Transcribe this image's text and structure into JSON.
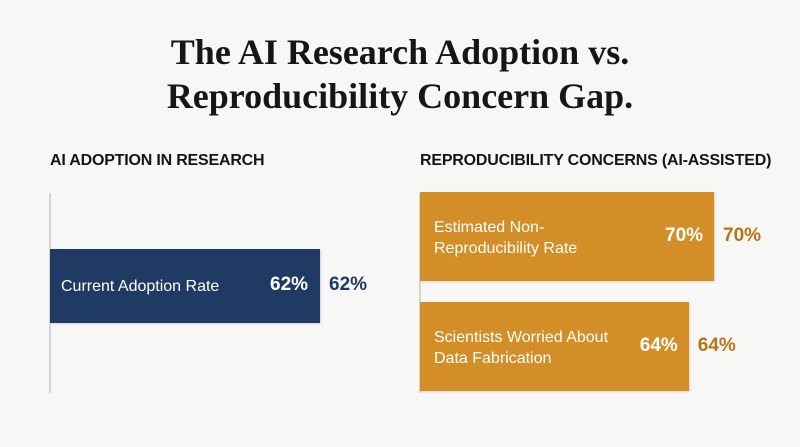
{
  "title_lines": [
    "The AI Research Adoption vs.",
    "Reproducibility Concern Gap."
  ],
  "colors": {
    "adoption": "#1f3a63",
    "concern": "#d38e27",
    "concern_text": "#b87518",
    "adoption_text": "#1f3a63"
  },
  "chart_data": [
    {
      "type": "bar",
      "orientation": "horizontal",
      "title": "AI ADOPTION IN RESEARCH",
      "categories": [
        "Current Adoption Rate"
      ],
      "values": [
        62
      ],
      "value_labels": [
        "62%"
      ],
      "xlim": [
        0,
        100
      ]
    },
    {
      "type": "bar",
      "orientation": "horizontal",
      "title": "REPRODUCIBILITY CONCERNS (AI-ASSISTED)",
      "categories": [
        "Estimated Non-Reproducibility Rate",
        "Scientists Worried About Data Fabrication"
      ],
      "category_lines": [
        [
          "Estimated Non-",
          "Reproducibility Rate"
        ],
        [
          "Scientists Worried About",
          "Data Fabrication"
        ]
      ],
      "values": [
        70,
        64
      ],
      "value_labels": [
        "70%",
        "64%"
      ],
      "xlim": [
        0,
        100
      ]
    }
  ]
}
